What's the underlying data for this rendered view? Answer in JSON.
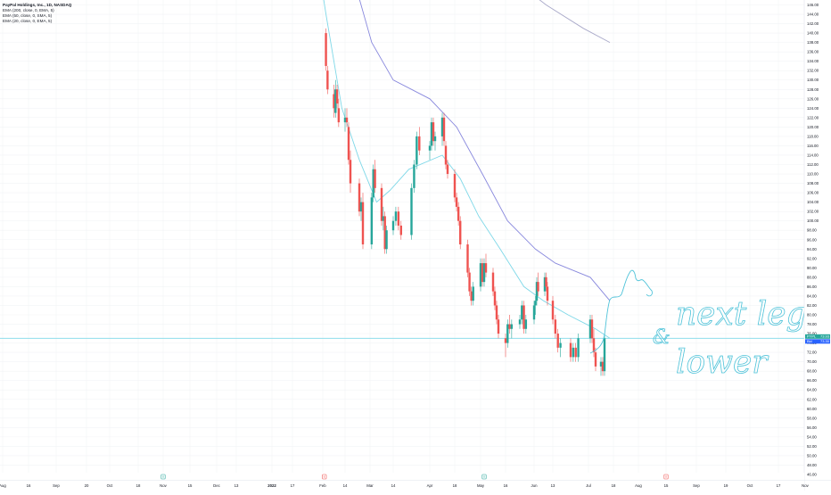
{
  "legend": {
    "symbol": "PayPal Holdings, Inc., 1D, NASDAQ",
    "indicators": [
      "EMA (200, close, 0, EMA, 5)",
      "EMA (50, close, 0, SMA, 5)",
      "EMA (20, close, 0, EMA, 5)"
    ]
  },
  "annotation": {
    "line1": "next leg",
    "line2": "lower",
    "ampersand": "&"
  },
  "chart_data": {
    "type": "candlestick",
    "price_scale": {
      "min": 46,
      "max": 146,
      "step": 2,
      "position": "right",
      "price_tag_top": "73.93",
      "price_tag_bottom": "73.30",
      "tag_top_label": "PYPL",
      "tag_bottom_label": "Bid"
    },
    "time_axis": {
      "labels": [
        {
          "label": "Aug",
          "date": "2021-08-20"
        },
        {
          "label": "16",
          "date": "2021-08-30"
        },
        {
          "label": "Sep",
          "date": "2021-09-13"
        },
        {
          "label": "20",
          "date": "2021-09-27"
        },
        {
          "label": "Oct",
          "date": "2021-10-11"
        },
        {
          "label": "18",
          "date": "2021-10-25"
        },
        {
          "label": "Nov",
          "date": "2021-11-08"
        },
        {
          "label": "15",
          "date": "2021-11-22"
        },
        {
          "label": "Dec",
          "date": "2021-12-06"
        },
        {
          "label": "13",
          "date": "2021-12-20"
        },
        {
          "label": "2022",
          "date": "2022-01-03"
        },
        {
          "label": "17",
          "date": "2022-01-17"
        },
        {
          "label": "Feb",
          "date": "2022-01-31"
        },
        {
          "label": "14",
          "date": "2022-02-14"
        },
        {
          "label": "Mar",
          "date": "2022-02-28"
        },
        {
          "label": "14",
          "date": "2022-03-14"
        },
        {
          "label": "Apr",
          "date": "2022-03-28"
        },
        {
          "label": "18",
          "date": "2022-04-11"
        },
        {
          "label": "May",
          "date": "2022-04-25"
        },
        {
          "label": "16",
          "date": "2022-05-09"
        },
        {
          "label": "Jun",
          "date": "2022-05-23"
        },
        {
          "label": "13",
          "date": "2022-06-06"
        },
        {
          "label": "Jul",
          "date": "2022-06-20"
        },
        {
          "label": "18",
          "date": "2022-07-04"
        },
        {
          "label": "Aug",
          "date": "2022-07-18"
        },
        {
          "label": "15",
          "date": "2022-08-01"
        },
        {
          "label": "Sep",
          "date": "2022-08-15"
        },
        {
          "label": "19",
          "date": "2022-08-29"
        },
        {
          "label": "Oct",
          "date": "2022-09-12"
        },
        {
          "label": "17",
          "date": "2022-09-26"
        },
        {
          "label": "Nov",
          "date": "2022-10-10"
        }
      ],
      "markers": [
        {
          "date": "2021-11-08",
          "type": "dividend",
          "color": "#26a69a"
        },
        {
          "date": "2022-02-01",
          "type": "earnings",
          "color": "#ef5350"
        },
        {
          "date": "2022-04-27",
          "type": "dividend",
          "color": "#26a69a"
        },
        {
          "date": "2022-08-01",
          "type": "earnings",
          "color": "#ef5350"
        }
      ]
    },
    "horizontal_line": {
      "value": 75,
      "color": "#7fd8e8"
    },
    "colors": {
      "up": "#26a69a",
      "down": "#ef5350",
      "ema20": "#7fd8e8",
      "ema50": "#8888dd",
      "ema200": "#a9a9c9",
      "drawing": "#4fc3d9"
    },
    "ema20": [
      {
        "date": "2022-01-23",
        "value": 172
      },
      {
        "date": "2022-02-02",
        "value": 144
      },
      {
        "date": "2022-02-12",
        "value": 124
      },
      {
        "date": "2022-02-22",
        "value": 113
      },
      {
        "date": "2022-03-04",
        "value": 104
      },
      {
        "date": "2022-03-12",
        "value": 106.5
      },
      {
        "date": "2022-03-20",
        "value": 111
      },
      {
        "date": "2022-04-04",
        "value": 114
      },
      {
        "date": "2022-04-14",
        "value": 109
      },
      {
        "date": "2022-04-24",
        "value": 101
      },
      {
        "date": "2022-05-06",
        "value": 94
      },
      {
        "date": "2022-05-18",
        "value": 86
      },
      {
        "date": "2022-05-30",
        "value": 83
      },
      {
        "date": "2022-06-12",
        "value": 80
      },
      {
        "date": "2022-06-24",
        "value": 77
      },
      {
        "date": "2022-07-02",
        "value": 75
      }
    ],
    "ema50": [
      {
        "date": "2022-02-02",
        "value": 178
      },
      {
        "date": "2022-02-14",
        "value": 158
      },
      {
        "date": "2022-03-01",
        "value": 138
      },
      {
        "date": "2022-03-14",
        "value": 130
      },
      {
        "date": "2022-03-28",
        "value": 126
      },
      {
        "date": "2022-04-12",
        "value": 120
      },
      {
        "date": "2022-04-26",
        "value": 110
      },
      {
        "date": "2022-05-10",
        "value": 100
      },
      {
        "date": "2022-05-24",
        "value": 94
      },
      {
        "date": "2022-06-07",
        "value": 91
      },
      {
        "date": "2022-06-21",
        "value": 88
      },
      {
        "date": "2022-07-02",
        "value": 83
      }
    ],
    "ema200": [
      {
        "date": "2022-05-14",
        "value": 151
      },
      {
        "date": "2022-06-01",
        "value": 146
      },
      {
        "date": "2022-06-18",
        "value": 141
      },
      {
        "date": "2022-07-02",
        "value": 138
      }
    ],
    "candles": [
      {
        "date": "2022-02-02",
        "open": 140,
        "high": 141,
        "low": 132,
        "close": 133
      },
      {
        "date": "2022-02-03",
        "open": 132,
        "high": 133,
        "low": 127,
        "close": 128
      },
      {
        "date": "2022-02-07",
        "open": 127,
        "high": 129,
        "low": 122,
        "close": 124
      },
      {
        "date": "2022-02-08",
        "open": 123,
        "high": 130,
        "low": 122,
        "close": 128
      },
      {
        "date": "2022-02-09",
        "open": 128,
        "high": 129,
        "low": 124,
        "close": 125
      },
      {
        "date": "2022-02-10",
        "open": 124,
        "high": 126,
        "low": 120,
        "close": 121
      },
      {
        "date": "2022-02-14",
        "open": 121,
        "high": 124,
        "low": 119,
        "close": 122
      },
      {
        "date": "2022-02-15",
        "open": 122,
        "high": 124,
        "low": 120,
        "close": 121
      },
      {
        "date": "2022-02-16",
        "open": 120,
        "high": 121,
        "low": 112,
        "close": 113
      },
      {
        "date": "2022-02-17",
        "open": 113,
        "high": 115,
        "low": 106,
        "close": 108
      },
      {
        "date": "2022-02-22",
        "open": 108,
        "high": 109,
        "low": 101,
        "close": 102
      },
      {
        "date": "2022-02-23",
        "open": 102,
        "high": 105,
        "low": 100,
        "close": 104
      },
      {
        "date": "2022-02-24",
        "open": 104,
        "high": 106,
        "low": 94,
        "close": 95
      },
      {
        "date": "2022-03-01",
        "open": 95,
        "high": 106,
        "low": 94,
        "close": 105
      },
      {
        "date": "2022-03-02",
        "open": 105,
        "high": 112,
        "low": 104,
        "close": 111
      },
      {
        "date": "2022-03-03",
        "open": 111,
        "high": 113,
        "low": 106,
        "close": 107
      },
      {
        "date": "2022-03-07",
        "open": 107,
        "high": 108,
        "low": 99,
        "close": 100
      },
      {
        "date": "2022-03-08",
        "open": 100,
        "high": 103,
        "low": 98,
        "close": 101
      },
      {
        "date": "2022-03-09",
        "open": 101,
        "high": 102,
        "low": 93,
        "close": 94
      },
      {
        "date": "2022-03-10",
        "open": 94,
        "high": 99,
        "low": 93,
        "close": 98
      },
      {
        "date": "2022-03-14",
        "open": 98,
        "high": 101,
        "low": 97,
        "close": 100
      },
      {
        "date": "2022-03-15",
        "open": 100,
        "high": 103,
        "low": 99,
        "close": 102
      },
      {
        "date": "2022-03-16",
        "open": 102,
        "high": 103,
        "low": 98,
        "close": 99
      },
      {
        "date": "2022-03-17",
        "open": 99,
        "high": 100,
        "low": 96,
        "close": 97
      },
      {
        "date": "2022-03-21",
        "open": 97,
        "high": 108,
        "low": 96,
        "close": 107
      },
      {
        "date": "2022-03-22",
        "open": 107,
        "high": 113,
        "low": 106,
        "close": 112
      },
      {
        "date": "2022-03-23",
        "open": 112,
        "high": 119,
        "low": 111,
        "close": 118
      },
      {
        "date": "2022-03-24",
        "open": 118,
        "high": 120,
        "low": 114,
        "close": 115
      },
      {
        "date": "2022-03-28",
        "open": 115,
        "high": 117,
        "low": 113,
        "close": 116
      },
      {
        "date": "2022-03-29",
        "open": 116,
        "high": 122,
        "low": 115,
        "close": 121
      },
      {
        "date": "2022-03-30",
        "open": 121,
        "high": 122,
        "low": 116,
        "close": 117
      },
      {
        "date": "2022-03-31",
        "open": 117,
        "high": 119,
        "low": 115,
        "close": 118
      },
      {
        "date": "2022-04-04",
        "open": 118,
        "high": 123,
        "low": 116,
        "close": 122
      },
      {
        "date": "2022-04-05",
        "open": 122,
        "high": 123,
        "low": 116,
        "close": 117
      },
      {
        "date": "2022-04-06",
        "open": 116,
        "high": 117,
        "low": 111,
        "close": 112
      },
      {
        "date": "2022-04-07",
        "open": 112,
        "high": 113,
        "low": 109,
        "close": 110
      },
      {
        "date": "2022-04-11",
        "open": 110,
        "high": 111,
        "low": 104,
        "close": 105
      },
      {
        "date": "2022-04-12",
        "open": 105,
        "high": 106,
        "low": 102,
        "close": 103
      },
      {
        "date": "2022-04-13",
        "open": 103,
        "high": 104,
        "low": 99,
        "close": 100
      },
      {
        "date": "2022-04-14",
        "open": 100,
        "high": 101,
        "low": 94,
        "close": 95
      },
      {
        "date": "2022-04-18",
        "open": 95,
        "high": 96,
        "low": 88,
        "close": 89
      },
      {
        "date": "2022-04-19",
        "open": 89,
        "high": 90,
        "low": 84,
        "close": 85
      },
      {
        "date": "2022-04-20",
        "open": 85,
        "high": 86,
        "low": 82,
        "close": 83
      },
      {
        "date": "2022-04-21",
        "open": 83,
        "high": 87,
        "low": 82,
        "close": 86
      },
      {
        "date": "2022-04-25",
        "open": 86,
        "high": 92,
        "low": 85,
        "close": 91
      },
      {
        "date": "2022-04-26",
        "open": 91,
        "high": 92,
        "low": 86,
        "close": 87
      },
      {
        "date": "2022-04-27",
        "open": 87,
        "high": 92,
        "low": 86,
        "close": 91
      },
      {
        "date": "2022-04-28",
        "open": 91,
        "high": 93,
        "low": 88,
        "close": 89
      },
      {
        "date": "2022-05-02",
        "open": 89,
        "high": 90,
        "low": 84,
        "close": 85
      },
      {
        "date": "2022-05-03",
        "open": 85,
        "high": 86,
        "low": 81,
        "close": 82
      },
      {
        "date": "2022-05-04",
        "open": 82,
        "high": 83,
        "low": 78,
        "close": 79
      },
      {
        "date": "2022-05-05",
        "open": 79,
        "high": 80,
        "low": 75,
        "close": 76
      },
      {
        "date": "2022-05-09",
        "open": 75,
        "high": 76,
        "low": 71,
        "close": 74
      },
      {
        "date": "2022-05-10",
        "open": 74,
        "high": 79,
        "low": 73,
        "close": 78
      },
      {
        "date": "2022-05-11",
        "open": 78,
        "high": 80,
        "low": 76,
        "close": 77
      },
      {
        "date": "2022-05-12",
        "open": 77,
        "high": 79,
        "low": 75,
        "close": 78
      },
      {
        "date": "2022-05-16",
        "open": 78,
        "high": 80,
        "low": 77,
        "close": 79
      },
      {
        "date": "2022-05-17",
        "open": 79,
        "high": 83,
        "low": 78,
        "close": 82
      },
      {
        "date": "2022-05-18",
        "open": 82,
        "high": 83,
        "low": 76,
        "close": 77
      },
      {
        "date": "2022-05-19",
        "open": 77,
        "high": 80,
        "low": 76,
        "close": 79
      },
      {
        "date": "2022-05-23",
        "open": 79,
        "high": 83,
        "low": 78,
        "close": 82
      },
      {
        "date": "2022-05-24",
        "open": 82,
        "high": 84,
        "low": 80,
        "close": 83
      },
      {
        "date": "2022-05-25",
        "open": 83,
        "high": 88,
        "low": 82,
        "close": 87
      },
      {
        "date": "2022-05-26",
        "open": 87,
        "high": 89,
        "low": 84,
        "close": 85
      },
      {
        "date": "2022-05-31",
        "open": 85,
        "high": 89,
        "low": 84,
        "close": 88
      },
      {
        "date": "2022-06-01",
        "open": 88,
        "high": 89,
        "low": 85,
        "close": 86
      },
      {
        "date": "2022-06-02",
        "open": 86,
        "high": 87,
        "low": 82,
        "close": 83
      },
      {
        "date": "2022-06-06",
        "open": 83,
        "high": 84,
        "low": 78,
        "close": 79
      },
      {
        "date": "2022-06-07",
        "open": 79,
        "high": 80,
        "low": 75,
        "close": 76
      },
      {
        "date": "2022-06-08",
        "open": 76,
        "high": 77,
        "low": 72,
        "close": 73
      },
      {
        "date": "2022-06-09",
        "open": 73,
        "high": 75,
        "low": 71,
        "close": 74
      },
      {
        "date": "2022-06-13",
        "open": 74,
        "high": 75,
        "low": 70,
        "close": 71
      },
      {
        "date": "2022-06-14",
        "open": 71,
        "high": 74,
        "low": 70,
        "close": 73
      },
      {
        "date": "2022-06-15",
        "open": 73,
        "high": 74,
        "low": 70,
        "close": 71
      },
      {
        "date": "2022-06-16",
        "open": 71,
        "high": 76,
        "low": 70,
        "close": 75
      },
      {
        "date": "2022-06-21",
        "open": 75,
        "high": 80,
        "low": 74,
        "close": 79
      },
      {
        "date": "2022-06-22",
        "open": 79,
        "high": 80,
        "low": 74,
        "close": 75
      },
      {
        "date": "2022-06-23",
        "open": 75,
        "high": 77,
        "low": 71,
        "close": 72
      },
      {
        "date": "2022-06-24",
        "open": 72,
        "high": 73,
        "low": 68,
        "close": 69
      },
      {
        "date": "2022-06-27",
        "open": 69,
        "high": 71,
        "low": 67,
        "close": 70
      },
      {
        "date": "2022-06-28",
        "open": 70,
        "high": 71,
        "low": 67,
        "close": 68
      },
      {
        "date": "2022-06-29",
        "open": 68,
        "high": 76,
        "low": 67,
        "close": 75
      }
    ]
  }
}
